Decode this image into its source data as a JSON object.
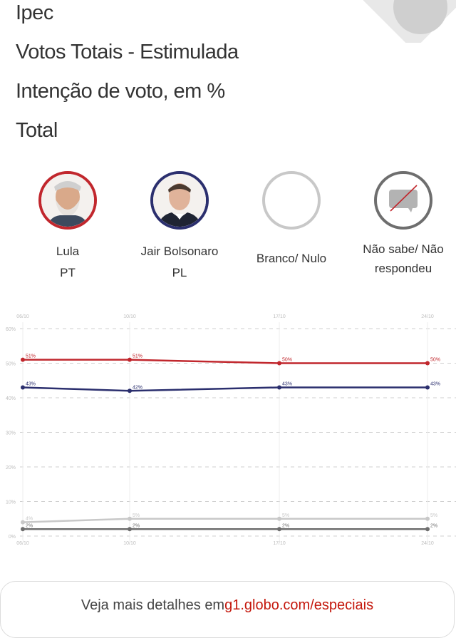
{
  "header": {
    "source": "Ipec",
    "survey_type": "Votos Totais - Estimulada",
    "metric": "Intenção de voto, em %",
    "segment": "Total"
  },
  "candidates": [
    {
      "name": "Lula",
      "party": "PT",
      "color": "#c1272d",
      "icon": "lula-photo"
    },
    {
      "name": "Jair Bolsonaro",
      "party": "PL",
      "color": "#2b2f6e",
      "icon": "bolsonaro-photo"
    },
    {
      "name": "Branco/ Nulo",
      "party": "",
      "color": "#c8c8c8",
      "icon": "empty-circle-icon"
    },
    {
      "name": "Não sabe/ Não respondeu",
      "party": "",
      "color": "#6e6e6e",
      "icon": "no-answer-speech-bubble-icon"
    }
  ],
  "footer": {
    "text": "Veja mais detalhes em ",
    "link": "g1.globo.com/especiais"
  },
  "chart_data": {
    "type": "line",
    "title": "Intenção de voto, em %",
    "x": [
      "06/10",
      "10/10",
      "17/10",
      "24/10"
    ],
    "yticks": [
      "0%",
      "10%",
      "20%",
      "30%",
      "40%",
      "50%",
      "60%"
    ],
    "ylim": [
      0,
      60
    ],
    "grid": true,
    "series": [
      {
        "name": "Lula",
        "color": "#c1272d",
        "values": [
          51,
          51,
          50,
          50
        ],
        "labels": [
          "51%",
          "51%",
          "50%",
          "50%"
        ]
      },
      {
        "name": "Jair Bolsonaro",
        "color": "#2b2f6e",
        "values": [
          43,
          42,
          43,
          43
        ],
        "labels": [
          "43%",
          "42%",
          "43%",
          "43%"
        ]
      },
      {
        "name": "Branco/ Nulo",
        "color": "#c8c8c8",
        "values": [
          4,
          5,
          5,
          5
        ],
        "labels": [
          "4%",
          "5%",
          "5%",
          "5%"
        ]
      },
      {
        "name": "Não sabe/ Não respondeu",
        "color": "#6e6e6e",
        "values": [
          2,
          2,
          2,
          2
        ],
        "labels": [
          "2%",
          "2%",
          "2%",
          "2%"
        ]
      }
    ]
  }
}
